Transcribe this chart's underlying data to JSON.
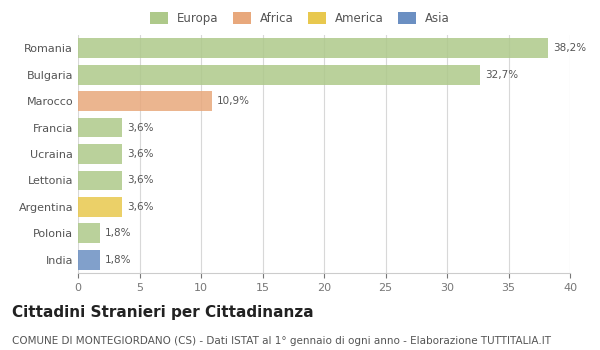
{
  "countries": [
    "Romania",
    "Bulgaria",
    "Marocco",
    "Francia",
    "Ucraina",
    "Lettonia",
    "Argentina",
    "Polonia",
    "India"
  ],
  "values": [
    38.2,
    32.7,
    10.9,
    3.6,
    3.6,
    3.6,
    3.6,
    1.8,
    1.8
  ],
  "labels": [
    "38,2%",
    "32,7%",
    "10,9%",
    "3,6%",
    "3,6%",
    "3,6%",
    "3,6%",
    "1,8%",
    "1,8%"
  ],
  "bar_colors": [
    "#aec98a",
    "#aec98a",
    "#e8a87c",
    "#aec98a",
    "#aec98a",
    "#aec98a",
    "#e8c84e",
    "#aec98a",
    "#6b8fc2"
  ],
  "legend_labels": [
    "Europa",
    "Africa",
    "America",
    "Asia"
  ],
  "legend_colors": [
    "#aec98a",
    "#e8a87c",
    "#e8c84e",
    "#6b8fc2"
  ],
  "xlim": [
    0,
    40
  ],
  "xticks": [
    0,
    5,
    10,
    15,
    20,
    25,
    30,
    35,
    40
  ],
  "title": "Cittadini Stranieri per Cittadinanza",
  "subtitle": "COMUNE DI MONTEGIORDANO (CS) - Dati ISTAT al 1° gennaio di ogni anno - Elaborazione TUTTITALIA.IT",
  "bg_color": "#ffffff",
  "bar_height": 0.75,
  "title_fontsize": 11,
  "subtitle_fontsize": 7.5,
  "label_fontsize": 7.5,
  "tick_fontsize": 8,
  "legend_fontsize": 8.5
}
